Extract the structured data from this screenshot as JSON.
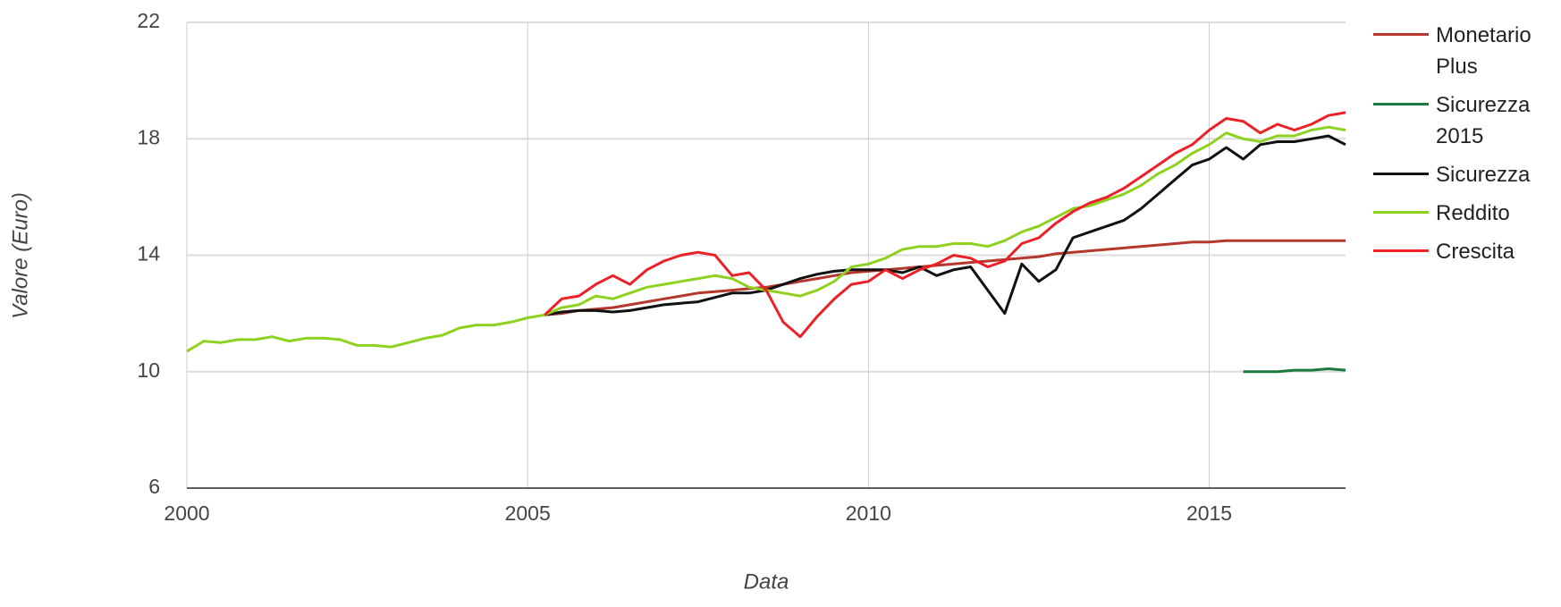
{
  "chart_data": {
    "type": "line",
    "x_label": "Data",
    "y_label": "Valore (Euro)",
    "x": [
      2000,
      2000.25,
      2000.5,
      2000.75,
      2001,
      2001.25,
      2001.5,
      2001.75,
      2002,
      2002.25,
      2002.5,
      2002.75,
      2003,
      2003.25,
      2003.5,
      2003.75,
      2004,
      2004.25,
      2004.5,
      2004.75,
      2005,
      2005.25,
      2005.5,
      2005.75,
      2006,
      2006.25,
      2006.5,
      2006.75,
      2007,
      2007.25,
      2007.5,
      2007.75,
      2008,
      2008.25,
      2008.5,
      2008.75,
      2009,
      2009.25,
      2009.5,
      2009.75,
      2010,
      2010.25,
      2010.5,
      2010.75,
      2011,
      2011.25,
      2011.5,
      2011.75,
      2012,
      2012.25,
      2012.5,
      2012.75,
      2013,
      2013.25,
      2013.5,
      2013.75,
      2014,
      2014.25,
      2014.5,
      2014.75,
      2015,
      2015.25,
      2015.5,
      2015.75,
      2016,
      2016.25,
      2016.5,
      2016.75,
      2017
    ],
    "series": [
      {
        "name": "Monetario Plus",
        "color": "#b5382c",
        "values": [
          null,
          null,
          null,
          null,
          null,
          null,
          null,
          null,
          null,
          null,
          null,
          null,
          null,
          null,
          null,
          null,
          null,
          null,
          null,
          null,
          null,
          11.95,
          12.0,
          12.1,
          12.15,
          12.2,
          12.3,
          12.4,
          12.5,
          12.6,
          12.7,
          12.75,
          12.8,
          12.85,
          12.9,
          13.0,
          13.1,
          13.2,
          13.3,
          13.4,
          13.45,
          13.5,
          13.55,
          13.6,
          13.65,
          13.7,
          13.75,
          13.8,
          13.85,
          13.9,
          13.95,
          14.05,
          14.1,
          14.15,
          14.2,
          14.25,
          14.3,
          14.35,
          14.4,
          14.45,
          14.45,
          14.5,
          14.5,
          14.5,
          14.5,
          14.5,
          14.5,
          14.5,
          14.5
        ]
      },
      {
        "name": "Sicurezza 2015",
        "color": "#1b7a3e",
        "values": [
          null,
          null,
          null,
          null,
          null,
          null,
          null,
          null,
          null,
          null,
          null,
          null,
          null,
          null,
          null,
          null,
          null,
          null,
          null,
          null,
          null,
          null,
          null,
          null,
          null,
          null,
          null,
          null,
          null,
          null,
          null,
          null,
          null,
          null,
          null,
          null,
          null,
          null,
          null,
          null,
          null,
          null,
          null,
          null,
          null,
          null,
          null,
          null,
          null,
          null,
          null,
          null,
          null,
          null,
          null,
          null,
          null,
          null,
          null,
          null,
          null,
          null,
          10.0,
          10.0,
          10.0,
          10.05,
          10.05,
          10.1,
          10.05
        ]
      },
      {
        "name": "Sicurezza",
        "color": "#111111",
        "values": [
          null,
          null,
          null,
          null,
          null,
          null,
          null,
          null,
          null,
          null,
          null,
          null,
          null,
          null,
          null,
          null,
          null,
          null,
          null,
          null,
          null,
          11.95,
          12.05,
          12.1,
          12.1,
          12.05,
          12.1,
          12.2,
          12.3,
          12.35,
          12.4,
          12.55,
          12.7,
          12.7,
          12.8,
          13.0,
          13.2,
          13.35,
          13.45,
          13.5,
          13.5,
          13.5,
          13.4,
          13.6,
          13.3,
          13.5,
          13.6,
          12.8,
          12.0,
          13.7,
          13.1,
          13.5,
          14.6,
          14.8,
          15.0,
          15.2,
          15.6,
          16.1,
          16.6,
          17.1,
          17.3,
          17.7,
          17.3,
          17.8,
          17.9,
          17.9,
          18.0,
          18.1,
          17.8
        ]
      },
      {
        "name": "Reddito",
        "color": "#8ed21f",
        "values": [
          10.7,
          11.05,
          11.0,
          11.1,
          11.1,
          11.2,
          11.05,
          11.15,
          11.15,
          11.1,
          10.9,
          10.9,
          10.85,
          11.0,
          11.15,
          11.25,
          11.5,
          11.6,
          11.6,
          11.7,
          11.85,
          11.95,
          12.2,
          12.3,
          12.6,
          12.5,
          12.7,
          12.9,
          13.0,
          13.1,
          13.2,
          13.3,
          13.2,
          12.9,
          12.8,
          12.7,
          12.6,
          12.8,
          13.1,
          13.6,
          13.7,
          13.9,
          14.2,
          14.3,
          14.3,
          14.4,
          14.4,
          14.3,
          14.5,
          14.8,
          15.0,
          15.3,
          15.6,
          15.7,
          15.9,
          16.1,
          16.4,
          16.8,
          17.1,
          17.5,
          17.8,
          18.2,
          18.0,
          17.9,
          18.1,
          18.1,
          18.3,
          18.4,
          18.3
        ]
      },
      {
        "name": "Crescita",
        "color": "#ec2027",
        "values": [
          null,
          null,
          null,
          null,
          null,
          null,
          null,
          null,
          null,
          null,
          null,
          null,
          null,
          null,
          null,
          null,
          null,
          null,
          null,
          null,
          null,
          11.95,
          12.5,
          12.6,
          13.0,
          13.3,
          13.0,
          13.5,
          13.8,
          14.0,
          14.1,
          14.0,
          13.3,
          13.4,
          12.8,
          11.7,
          11.2,
          11.9,
          12.5,
          13.0,
          13.1,
          13.5,
          13.2,
          13.5,
          13.7,
          14.0,
          13.9,
          13.6,
          13.8,
          14.4,
          14.6,
          15.1,
          15.5,
          15.8,
          16.0,
          16.3,
          16.7,
          17.1,
          17.5,
          17.8,
          18.3,
          18.7,
          18.6,
          18.2,
          18.5,
          18.3,
          18.5,
          18.8,
          18.9
        ]
      }
    ],
    "xlim": [
      2000,
      2017
    ],
    "xticks": [
      2000,
      2005,
      2010,
      2015
    ],
    "ylim": [
      6,
      22
    ],
    "yticks": [
      6,
      10,
      14,
      18,
      22
    ],
    "grid": true,
    "legend": "right"
  }
}
